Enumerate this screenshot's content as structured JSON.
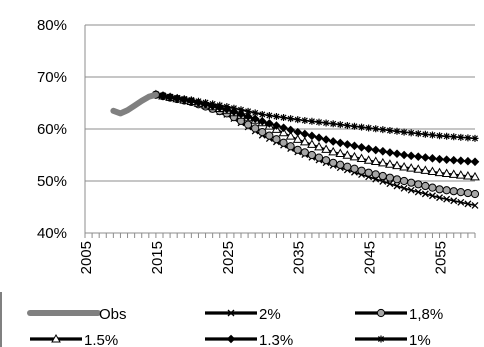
{
  "chart_data": {
    "type": "line",
    "xlabel": "",
    "ylabel": "",
    "xlim": [
      2005,
      2060
    ],
    "ylim": [
      40,
      80
    ],
    "y_ticks": [
      40,
      50,
      60,
      70,
      80
    ],
    "y_tick_labels": [
      "40%",
      "50%",
      "60%",
      "70%",
      "80%"
    ],
    "x_ticks": [
      2005,
      2015,
      2025,
      2035,
      2045,
      2055
    ],
    "x_tick_labels": [
      "2005",
      "2015",
      "2025",
      "2035",
      "2045",
      "2055"
    ],
    "grid": "horizontal",
    "legend_position": "bottom",
    "colors": {
      "obs": "#808080",
      "line": "#000000",
      "fill_1_8": "#a6a6a6",
      "gridline": "#8c8c8c",
      "axis": "#8c8c8c"
    },
    "series": [
      {
        "name": "Obs",
        "marker": "thick-line",
        "x": [
          2009,
          2010,
          2011,
          2012,
          2013,
          2014,
          2015
        ],
        "values": [
          63.5,
          63.0,
          63.6,
          64.5,
          65.4,
          66.2,
          66.6
        ]
      },
      {
        "name": "2%",
        "marker": "cross",
        "x": [
          2015,
          2020,
          2025,
          2030,
          2035,
          2040,
          2045,
          2050,
          2055,
          2060
        ],
        "values": [
          66.6,
          65.4,
          62.8,
          58.8,
          55.6,
          53.0,
          50.8,
          48.6,
          46.8,
          45.3
        ]
      },
      {
        "name": "1,8%",
        "marker": "circle",
        "x": [
          2015,
          2020,
          2025,
          2030,
          2035,
          2040,
          2045,
          2050,
          2055,
          2060
        ],
        "values": [
          66.6,
          65.2,
          63.0,
          59.4,
          56.0,
          53.5,
          51.6,
          50.0,
          48.4,
          47.5
        ]
      },
      {
        "name": "1.5%",
        "marker": "triangle",
        "x": [
          2015,
          2020,
          2025,
          2030,
          2035,
          2040,
          2045,
          2050,
          2055,
          2060
        ],
        "values": [
          66.6,
          65.3,
          63.6,
          61.2,
          58.0,
          55.6,
          54.0,
          52.7,
          51.6,
          50.8
        ]
      },
      {
        "name": "1.3%",
        "marker": "diamond",
        "x": [
          2015,
          2020,
          2025,
          2030,
          2035,
          2040,
          2045,
          2050,
          2055,
          2060
        ],
        "values": [
          66.6,
          65.4,
          63.8,
          61.5,
          59.4,
          57.6,
          56.2,
          55.0,
          54.2,
          53.7
        ]
      },
      {
        "name": "1%",
        "marker": "star",
        "x": [
          2015,
          2020,
          2025,
          2030,
          2035,
          2040,
          2045,
          2050,
          2055,
          2060
        ],
        "values": [
          66.6,
          65.6,
          64.3,
          62.8,
          61.8,
          61.0,
          60.2,
          59.4,
          58.7,
          58.2
        ]
      }
    ],
    "legend_order": [
      0,
      1,
      2,
      3,
      4,
      5
    ]
  }
}
